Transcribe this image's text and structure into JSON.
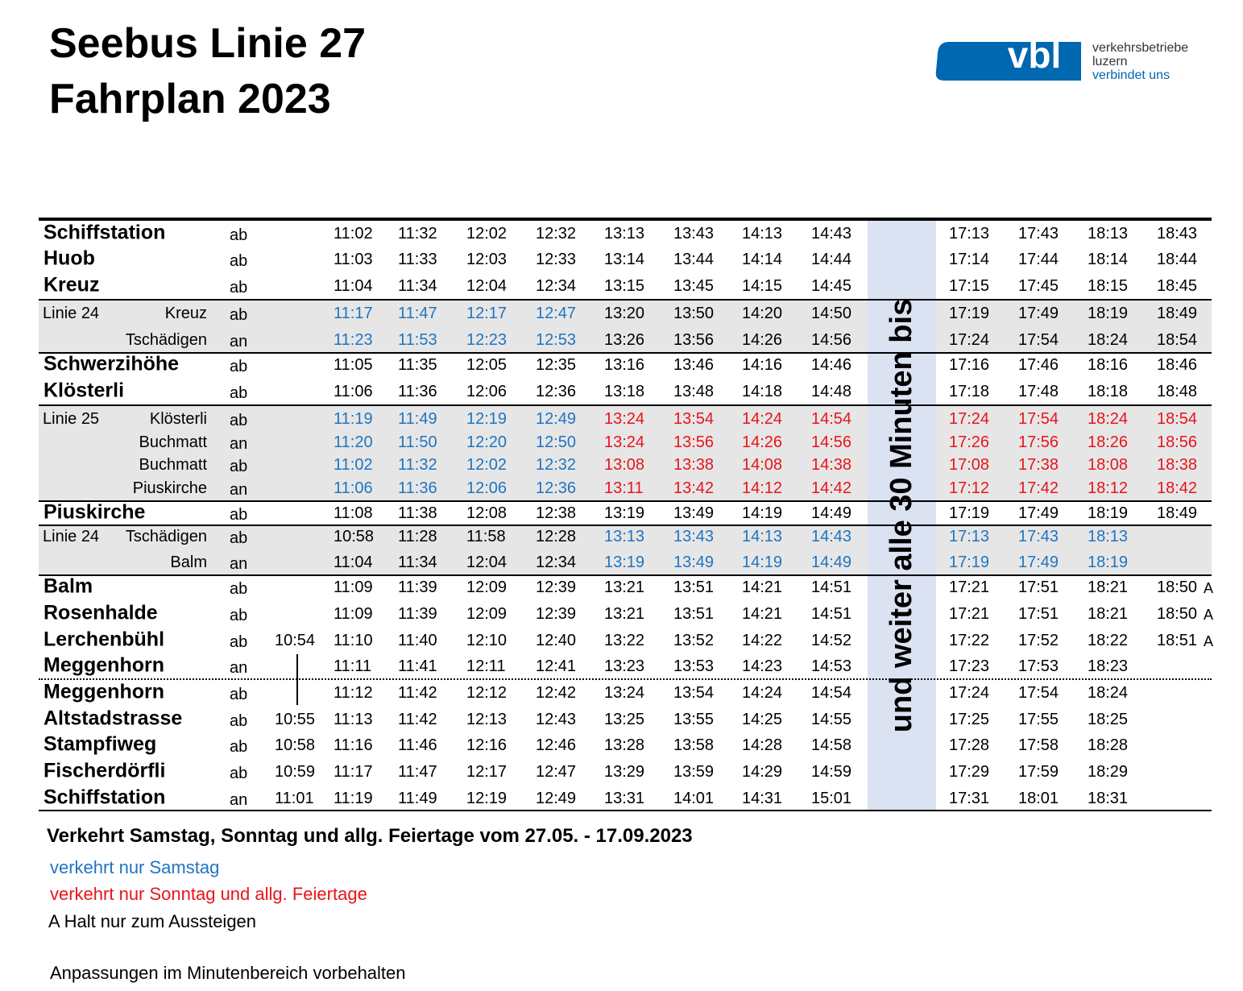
{
  "header": {
    "title": [
      "Seebus Linie 27",
      "Fahrplan 2023"
    ]
  },
  "logo": {
    "mark": "vbl",
    "lines": [
      "verkehrsbetriebe",
      "luzern",
      "verbindet uns"
    ]
  },
  "band": "und weiter alle 30 Minuten bis",
  "colors": {
    "blue": "#1f74c2",
    "red": "#e8141b",
    "black": "#000000"
  },
  "table": {
    "rows": [
      {
        "stop": "Schiffstation",
        "dir": "ab",
        "times": [
          "11:02",
          "11:32",
          "12:02",
          "12:32",
          "13:13",
          "13:43",
          "14:13",
          "14:43"
        ],
        "late": [
          "17:13",
          "17:43",
          "18:13",
          "18:43"
        ]
      },
      {
        "stop": "Huob",
        "dir": "ab",
        "times": [
          "11:03",
          "11:33",
          "12:03",
          "12:33",
          "13:14",
          "13:44",
          "14:14",
          "14:44"
        ],
        "late": [
          "17:14",
          "17:44",
          "18:14",
          "18:44"
        ]
      },
      {
        "stop": "Kreuz",
        "dir": "ab",
        "times": [
          "11:04",
          "11:34",
          "12:04",
          "12:34",
          "13:15",
          "13:45",
          "14:15",
          "14:45"
        ],
        "late": [
          "17:15",
          "17:45",
          "18:15",
          "18:45"
        ]
      },
      {
        "line": "Linie 24",
        "stop": "Kreuz",
        "dir": "ab",
        "times": [
          "11:17",
          "11:47",
          "12:17",
          "12:47",
          "13:20",
          "13:50",
          "14:20",
          "14:50"
        ],
        "late": [
          "17:19",
          "17:49",
          "18:19",
          "18:49"
        ],
        "time_colors": [
          "blue",
          "blue",
          "blue",
          "blue",
          "black",
          "black",
          "black",
          "black"
        ]
      },
      {
        "stop": "Tschädigen",
        "dir": "an",
        "times": [
          "11:23",
          "11:53",
          "12:23",
          "12:53",
          "13:26",
          "13:56",
          "14:26",
          "14:56"
        ],
        "late": [
          "17:24",
          "17:54",
          "18:24",
          "18:54"
        ],
        "time_colors": [
          "blue",
          "blue",
          "blue",
          "blue",
          "black",
          "black",
          "black",
          "black"
        ]
      },
      {
        "stop": "Schwerzihöhe",
        "dir": "ab",
        "times": [
          "11:05",
          "11:35",
          "12:05",
          "12:35",
          "13:16",
          "13:46",
          "14:16",
          "14:46"
        ],
        "late": [
          "17:16",
          "17:46",
          "18:16",
          "18:46"
        ]
      },
      {
        "stop": "Klösterli",
        "dir": "ab",
        "times": [
          "11:06",
          "11:36",
          "12:06",
          "12:36",
          "13:18",
          "13:48",
          "14:18",
          "14:48"
        ],
        "late": [
          "17:18",
          "17:48",
          "18:18",
          "18:48"
        ]
      },
      {
        "line": "Linie 25",
        "stop": "Klösterli",
        "dir": "ab",
        "times": [
          "11:19",
          "11:49",
          "12:19",
          "12:49",
          "13:24",
          "13:54",
          "14:24",
          "14:54"
        ],
        "late": [
          "17:24",
          "17:54",
          "18:24",
          "18:54"
        ],
        "time_colors": [
          "blue",
          "blue",
          "blue",
          "blue",
          "red",
          "red",
          "red",
          "red"
        ],
        "late_colors": [
          "red",
          "red",
          "red",
          "red"
        ]
      },
      {
        "stop": "Buchmatt",
        "dir": "an",
        "times": [
          "11:20",
          "11:50",
          "12:20",
          "12:50",
          "13:24",
          "13:56",
          "14:26",
          "14:56"
        ],
        "late": [
          "17:26",
          "17:56",
          "18:26",
          "18:56"
        ],
        "time_colors": [
          "blue",
          "blue",
          "blue",
          "blue",
          "red",
          "red",
          "red",
          "red"
        ],
        "late_colors": [
          "red",
          "red",
          "red",
          "red"
        ]
      },
      {
        "stop": "Buchmatt",
        "dir": "ab",
        "times": [
          "11:02",
          "11:32",
          "12:02",
          "12:32",
          "13:08",
          "13:38",
          "14:08",
          "14:38"
        ],
        "late": [
          "17:08",
          "17:38",
          "18:08",
          "18:38"
        ],
        "time_colors": [
          "blue",
          "blue",
          "blue",
          "blue",
          "red",
          "red",
          "red",
          "red"
        ],
        "late_colors": [
          "red",
          "red",
          "red",
          "red"
        ]
      },
      {
        "stop": "Piuskirche",
        "dir": "an",
        "times": [
          "11:06",
          "11:36",
          "12:06",
          "12:36",
          "13:11",
          "13:42",
          "14:12",
          "14:42"
        ],
        "late": [
          "17:12",
          "17:42",
          "18:12",
          "18:42"
        ],
        "time_colors": [
          "blue",
          "blue",
          "blue",
          "blue",
          "red",
          "red",
          "red",
          "red"
        ],
        "late_colors": [
          "red",
          "red",
          "red",
          "red"
        ]
      },
      {
        "stop": "Piuskirche",
        "dir": "ab",
        "times": [
          "11:08",
          "11:38",
          "12:08",
          "12:38",
          "13:19",
          "13:49",
          "14:19",
          "14:49"
        ],
        "late": [
          "17:19",
          "17:49",
          "18:19",
          "18:49"
        ]
      },
      {
        "line": "Linie 24",
        "stop": "Tschädigen",
        "dir": "ab",
        "times": [
          "10:58",
          "11:28",
          "11:58",
          "12:28",
          "13:13",
          "13:43",
          "14:13",
          "14:43"
        ],
        "late": [
          "17:13",
          "17:43",
          "18:13"
        ],
        "time_colors": [
          "black",
          "black",
          "black",
          "black",
          "blue",
          "blue",
          "blue",
          "blue"
        ],
        "late_colors": [
          "blue",
          "blue",
          "blue"
        ]
      },
      {
        "stop": "Balm",
        "dir": "an",
        "times": [
          "11:04",
          "11:34",
          "12:04",
          "12:34",
          "13:19",
          "13:49",
          "14:19",
          "14:49"
        ],
        "late": [
          "17:19",
          "17:49",
          "18:19"
        ],
        "time_colors": [
          "black",
          "black",
          "black",
          "black",
          "blue",
          "blue",
          "blue",
          "blue"
        ],
        "late_colors": [
          "blue",
          "blue",
          "blue"
        ]
      },
      {
        "stop": "Balm",
        "dir": "ab",
        "times": [
          "11:09",
          "11:39",
          "12:09",
          "12:39",
          "13:21",
          "13:51",
          "14:21",
          "14:51"
        ],
        "late": [
          "17:21",
          "17:51",
          "18:21",
          "18:50"
        ],
        "note": "A"
      },
      {
        "stop": "Rosenhalde",
        "dir": "ab",
        "times": [
          "11:09",
          "11:39",
          "12:09",
          "12:39",
          "13:21",
          "13:51",
          "14:21",
          "14:51"
        ],
        "late": [
          "17:21",
          "17:51",
          "18:21",
          "18:50"
        ],
        "note": "A"
      },
      {
        "stop": "Lerchenbühl",
        "dir": "ab",
        "early": "10:54",
        "times": [
          "11:10",
          "11:40",
          "12:10",
          "12:40",
          "13:22",
          "13:52",
          "14:22",
          "14:52"
        ],
        "late": [
          "17:22",
          "17:52",
          "18:22",
          "18:51"
        ],
        "note": "A"
      },
      {
        "stop": "Meggenhorn",
        "dir": "an",
        "times": [
          "11:11",
          "11:41",
          "12:11",
          "12:41",
          "13:23",
          "13:53",
          "14:23",
          "14:53"
        ],
        "late": [
          "17:23",
          "17:53",
          "18:23"
        ]
      },
      {
        "stop": "Meggenhorn",
        "dir": "ab",
        "times": [
          "11:12",
          "11:42",
          "12:12",
          "12:42",
          "13:24",
          "13:54",
          "14:24",
          "14:54"
        ],
        "late": [
          "17:24",
          "17:54",
          "18:24"
        ]
      },
      {
        "stop": "Altstadstrasse",
        "dir": "ab",
        "early": "10:55",
        "times": [
          "11:13",
          "11:42",
          "12:13",
          "12:43",
          "13:25",
          "13:55",
          "14:25",
          "14:55"
        ],
        "late": [
          "17:25",
          "17:55",
          "18:25"
        ]
      },
      {
        "stop": "Stampfiweg",
        "dir": "ab",
        "early": "10:58",
        "times": [
          "11:16",
          "11:46",
          "12:16",
          "12:46",
          "13:28",
          "13:58",
          "14:28",
          "14:58"
        ],
        "late": [
          "17:28",
          "17:58",
          "18:28"
        ]
      },
      {
        "stop": "Fischerdörfli",
        "dir": "ab",
        "early": "10:59",
        "times": [
          "11:17",
          "11:47",
          "12:17",
          "12:47",
          "13:29",
          "13:59",
          "14:29",
          "14:59"
        ],
        "late": [
          "17:29",
          "17:59",
          "18:29"
        ]
      },
      {
        "stop": "Schiffstation",
        "dir": "an",
        "early": "11:01",
        "times": [
          "11:19",
          "11:49",
          "12:19",
          "12:49",
          "13:31",
          "14:01",
          "14:31",
          "15:01"
        ],
        "late": [
          "17:31",
          "18:01",
          "18:31"
        ]
      }
    ]
  },
  "footer": {
    "validity": "Verkehrt Samstag, Sonntag und allg. Feiertage vom 27.05. - 17.09.2023",
    "saturday": "verkehrt nur Samstag",
    "sunday": "verkehrt nur Sonntag und allg. Feiertage",
    "note_a": "A Halt nur zum Aussteigen",
    "disclaimer": "Anpassungen im Minutenbereich vorbehalten"
  }
}
